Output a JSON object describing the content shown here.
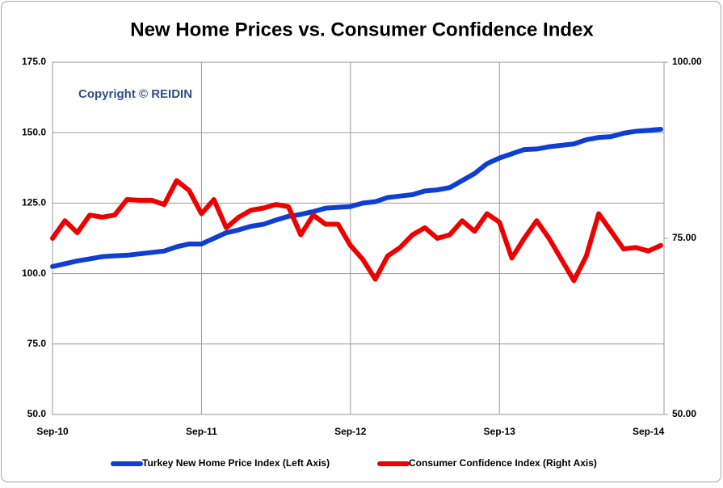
{
  "chart_data": {
    "type": "line",
    "title": "New Home Prices vs. Consumer Confidence Index",
    "annotation": "Copyright © REIDIN",
    "categories": [
      "Sep-10",
      null,
      null,
      null,
      null,
      null,
      null,
      null,
      null,
      null,
      null,
      null,
      "Sep-11",
      null,
      null,
      null,
      null,
      null,
      null,
      null,
      null,
      null,
      null,
      null,
      "Sep-12",
      null,
      null,
      null,
      null,
      null,
      null,
      null,
      null,
      null,
      null,
      null,
      "Sep-13",
      null,
      null,
      null,
      null,
      null,
      null,
      null,
      null,
      null,
      null,
      null,
      "Sep-14",
      null
    ],
    "series": [
      {
        "name": "Turkey New Home Price Index (Left Axis)",
        "color": "#0f3fd2",
        "axis": "y",
        "values": [
          102.5,
          103.5,
          104.5,
          105.2,
          106,
          106.3,
          106.5,
          107,
          107.5,
          108,
          109.5,
          110.5,
          110.5,
          112.5,
          114.5,
          115.5,
          116.8,
          117.5,
          119,
          120.3,
          121,
          122,
          123.2,
          123.5,
          123.8,
          125,
          125.5,
          127,
          127.5,
          128,
          129.3,
          129.7,
          130.5,
          133,
          135.5,
          139,
          141,
          142.5,
          144,
          144.2,
          145,
          145.5,
          146,
          147.5,
          148.3,
          148.6,
          149.8,
          150.5,
          150.8,
          151.2
        ]
      },
      {
        "name": "Consumer Confidence Index (Right Axis)",
        "color": "#ee0000",
        "axis": "y2",
        "values": [
          75,
          77.5,
          75.8,
          78.3,
          78,
          78.3,
          80.5,
          80.4,
          80.4,
          79.8,
          83.2,
          81.8,
          78.5,
          80.5,
          76.5,
          78,
          79,
          79.3,
          79.8,
          79.5,
          75.5,
          78.3,
          77,
          77,
          74,
          72,
          69.2,
          72.5,
          73.7,
          75.5,
          76.5,
          75,
          75.5,
          77.5,
          76,
          78.5,
          77.3,
          72.2,
          75,
          77.5,
          75,
          72,
          69,
          72.5,
          78.5,
          76,
          73.5,
          73.7,
          73.2,
          74
        ]
      }
    ],
    "ylim": [
      50,
      175
    ],
    "yticks": [
      {
        "value": 50,
        "label": "50.0"
      },
      {
        "value": 75,
        "label": "75.0"
      },
      {
        "value": 100,
        "label": "100.0"
      },
      {
        "value": 125,
        "label": "125.0"
      },
      {
        "value": 150,
        "label": "150.0"
      },
      {
        "value": 175,
        "label": "175.0"
      }
    ],
    "y2lim": [
      50,
      100
    ],
    "y2ticks": [
      {
        "value": 50,
        "label": "50.00"
      },
      {
        "value": 75,
        "label": "75.00"
      },
      {
        "value": 100,
        "label": "100.00"
      }
    ],
    "grid": true,
    "legend": "bottom"
  }
}
